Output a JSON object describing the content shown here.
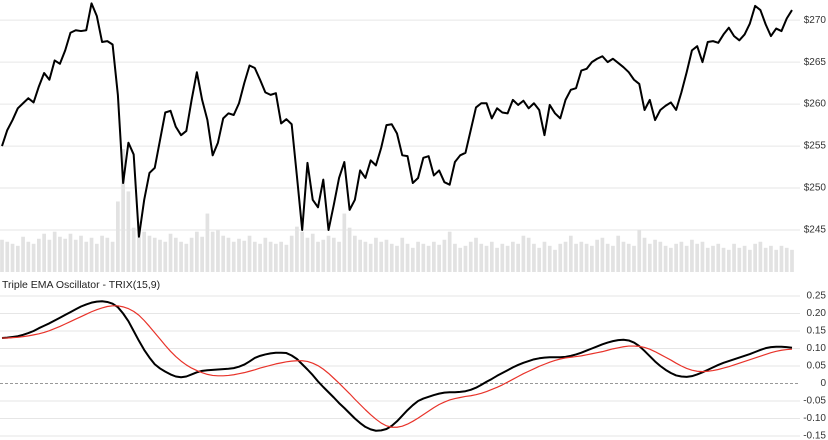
{
  "chart_data": [
    {
      "type": "line",
      "ylim": [
        240,
        272.4
      ],
      "yticks": [
        {
          "value": 245,
          "label": "$245"
        },
        {
          "value": 250,
          "label": "$250"
        },
        {
          "value": 255,
          "label": "$255"
        },
        {
          "value": 260,
          "label": "$260"
        },
        {
          "value": 265,
          "label": "$265"
        },
        {
          "value": 270,
          "label": "$270"
        }
      ],
      "y2lim": [
        0,
        270
      ],
      "grid": true,
      "series": [
        {
          "type": "bar",
          "axis": "y2",
          "color": "#e2e2e2",
          "values": [
            32,
            30,
            28,
            26,
            35,
            30,
            28,
            33,
            38,
            32,
            40,
            35,
            33,
            38,
            32,
            36,
            30,
            34,
            28,
            36,
            34,
            30,
            70,
            122,
            80,
            44,
            50,
            40,
            36,
            34,
            32,
            30,
            38,
            34,
            30,
            28,
            34,
            40,
            35,
            58,
            40,
            42,
            36,
            34,
            30,
            33,
            31,
            36,
            30,
            28,
            34,
            30,
            28,
            30,
            27,
            36,
            45,
            40,
            34,
            38,
            30,
            32,
            36,
            34,
            30,
            58,
            44,
            36,
            32,
            30,
            28,
            34,
            30,
            32,
            28,
            26,
            34,
            28,
            24,
            30,
            28,
            26,
            30,
            27,
            32,
            40,
            28,
            24,
            26,
            30,
            34,
            28,
            26,
            30,
            24,
            28,
            26,
            30,
            28,
            36,
            34,
            28,
            24,
            30,
            26,
            22,
            28,
            30,
            36,
            28,
            30,
            28,
            26,
            32,
            34,
            28,
            26,
            36,
            30,
            28,
            26,
            42,
            34,
            28,
            32,
            30,
            26,
            24,
            28,
            30,
            26,
            32,
            28,
            30,
            24,
            26,
            28,
            24,
            22,
            28,
            24,
            26,
            22,
            28,
            30,
            24,
            26,
            22,
            26,
            24,
            22
          ]
        },
        {
          "type": "line",
          "color": "#000000",
          "values": [
            255.0,
            256.9,
            258.1,
            259.5,
            260.1,
            260.7,
            260.2,
            262.1,
            263.7,
            262.9,
            265.2,
            264.8,
            266.4,
            268.5,
            268.8,
            268.7,
            268.8,
            272.0,
            270.5,
            267.4,
            267.5,
            267.1,
            261.1,
            250.6,
            255.4,
            254.0,
            244.2,
            248.6,
            251.8,
            252.4,
            255.7,
            259.0,
            259.2,
            257.3,
            256.3,
            256.8,
            260.5,
            263.8,
            260.5,
            258.1,
            253.9,
            255.4,
            258.3,
            258.9,
            258.7,
            260.1,
            262.5,
            264.6,
            264.3,
            262.9,
            261.4,
            261.1,
            261.3,
            257.7,
            258.2,
            257.6,
            251.4,
            245.0,
            253.0,
            248.6,
            247.7,
            251.0,
            245.0,
            248.0,
            251.2,
            253.1,
            247.4,
            248.6,
            252.1,
            251.2,
            253.3,
            252.7,
            254.8,
            257.5,
            257.6,
            256.5,
            253.9,
            253.8,
            250.6,
            251.2,
            253.6,
            253.8,
            251.5,
            252.1,
            250.7,
            250.4,
            253.1,
            253.9,
            254.2,
            256.9,
            259.6,
            260.1,
            260.1,
            258.3,
            259.5,
            259.0,
            258.9,
            260.5,
            259.9,
            260.4,
            259.5,
            260.1,
            259.3,
            256.3,
            259.9,
            258.9,
            258.3,
            260.5,
            261.7,
            261.9,
            264.0,
            264.2,
            265.0,
            265.4,
            265.7,
            265.0,
            265.4,
            264.9,
            264.4,
            263.8,
            262.9,
            262.4,
            259.3,
            260.5,
            258.1,
            259.3,
            259.8,
            260.2,
            259.3,
            261.4,
            263.8,
            266.4,
            266.9,
            265.0,
            267.4,
            267.5,
            267.3,
            268.3,
            269.1,
            268.1,
            267.6,
            268.3,
            269.6,
            271.7,
            271.2,
            269.5,
            268.1,
            269.0,
            268.7,
            270.2,
            271.2
          ]
        }
      ]
    },
    {
      "type": "line",
      "title": "Triple EMA Oscillator - TRIX(15,9)",
      "ylim": [
        -0.16,
        0.27
      ],
      "yticks": [
        0.25,
        {
          "value": 0.2,
          "label": "0.20"
        },
        0.15,
        {
          "value": 0.1,
          "label": "0.10"
        },
        0.05,
        0,
        -0.05,
        {
          "value": -0.1,
          "label": "-0.10"
        },
        -0.15
      ],
      "grid": true,
      "zero_line": true,
      "series": [
        {
          "type": "line",
          "color": "#000000",
          "values": [
            0.13,
            0.131,
            0.133,
            0.135,
            0.139,
            0.144,
            0.15,
            0.158,
            0.165,
            0.172,
            0.18,
            0.188,
            0.196,
            0.204,
            0.212,
            0.22,
            0.226,
            0.231,
            0.234,
            0.235,
            0.233,
            0.228,
            0.218,
            0.2,
            0.178,
            0.15,
            0.122,
            0.096,
            0.074,
            0.055,
            0.043,
            0.034,
            0.026,
            0.02,
            0.018,
            0.02,
            0.026,
            0.032,
            0.036,
            0.038,
            0.039,
            0.04,
            0.041,
            0.042,
            0.044,
            0.048,
            0.054,
            0.063,
            0.073,
            0.079,
            0.083,
            0.086,
            0.088,
            0.088,
            0.087,
            0.08,
            0.07,
            0.055,
            0.04,
            0.024,
            0.006,
            -0.01,
            -0.025,
            -0.04,
            -0.056,
            -0.07,
            -0.085,
            -0.1,
            -0.113,
            -0.124,
            -0.131,
            -0.135,
            -0.134,
            -0.13,
            -0.121,
            -0.108,
            -0.092,
            -0.076,
            -0.062,
            -0.05,
            -0.043,
            -0.038,
            -0.033,
            -0.029,
            -0.026,
            -0.025,
            -0.025,
            -0.024,
            -0.022,
            -0.018,
            -0.012,
            -0.004,
            0.005,
            0.013,
            0.022,
            0.03,
            0.038,
            0.046,
            0.053,
            0.059,
            0.064,
            0.069,
            0.072,
            0.074,
            0.075,
            0.075,
            0.075,
            0.076,
            0.079,
            0.083,
            0.088,
            0.094,
            0.1,
            0.106,
            0.112,
            0.117,
            0.121,
            0.124,
            0.125,
            0.123,
            0.117,
            0.107,
            0.093,
            0.078,
            0.063,
            0.05,
            0.039,
            0.03,
            0.023,
            0.02,
            0.019,
            0.021,
            0.026,
            0.032,
            0.039,
            0.046,
            0.053,
            0.059,
            0.064,
            0.069,
            0.074,
            0.079,
            0.084,
            0.09,
            0.096,
            0.101,
            0.104,
            0.105,
            0.105,
            0.104,
            0.102
          ]
        },
        {
          "type": "line",
          "color": "#e8332a",
          "values": [
            0.13,
            0.13,
            0.131,
            0.132,
            0.134,
            0.136,
            0.139,
            0.142,
            0.146,
            0.151,
            0.157,
            0.163,
            0.17,
            0.177,
            0.184,
            0.191,
            0.198,
            0.205,
            0.211,
            0.216,
            0.22,
            0.222,
            0.222,
            0.219,
            0.214,
            0.206,
            0.195,
            0.18,
            0.163,
            0.145,
            0.127,
            0.109,
            0.092,
            0.077,
            0.064,
            0.053,
            0.044,
            0.037,
            0.031,
            0.026,
            0.023,
            0.022,
            0.022,
            0.023,
            0.025,
            0.028,
            0.031,
            0.035,
            0.039,
            0.044,
            0.048,
            0.052,
            0.056,
            0.059,
            0.062,
            0.064,
            0.065,
            0.065,
            0.063,
            0.058,
            0.051,
            0.041,
            0.029,
            0.015,
            0.001,
            -0.014,
            -0.029,
            -0.045,
            -0.06,
            -0.075,
            -0.089,
            -0.102,
            -0.113,
            -0.121,
            -0.125,
            -0.125,
            -0.122,
            -0.116,
            -0.108,
            -0.099,
            -0.089,
            -0.079,
            -0.069,
            -0.06,
            -0.053,
            -0.047,
            -0.043,
            -0.04,
            -0.037,
            -0.035,
            -0.032,
            -0.028,
            -0.023,
            -0.017,
            -0.011,
            -0.004,
            0.004,
            0.012,
            0.02,
            0.028,
            0.035,
            0.042,
            0.049,
            0.055,
            0.061,
            0.066,
            0.07,
            0.073,
            0.075,
            0.077,
            0.079,
            0.082,
            0.085,
            0.088,
            0.091,
            0.095,
            0.099,
            0.102,
            0.105,
            0.107,
            0.107,
            0.106,
            0.103,
            0.098,
            0.091,
            0.083,
            0.075,
            0.067,
            0.058,
            0.05,
            0.043,
            0.038,
            0.035,
            0.034,
            0.035,
            0.037,
            0.04,
            0.044,
            0.048,
            0.053,
            0.058,
            0.063,
            0.068,
            0.073,
            0.078,
            0.083,
            0.088,
            0.092,
            0.095,
            0.097,
            0.098
          ]
        }
      ]
    }
  ]
}
